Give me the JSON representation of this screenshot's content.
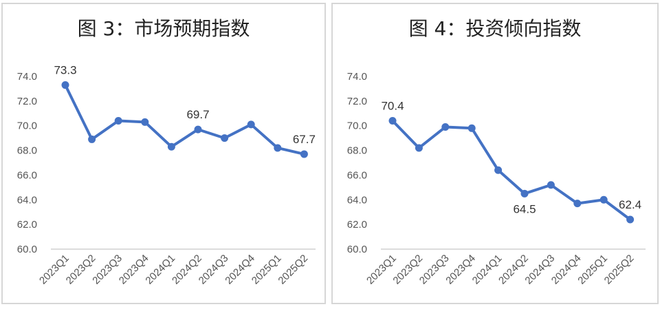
{
  "chart_data": [
    {
      "type": "line",
      "title": "图 3：市场预期指数",
      "categories": [
        "2023Q1",
        "2023Q2",
        "2023Q3",
        "2023Q4",
        "2024Q1",
        "2024Q2",
        "2024Q3",
        "2024Q4",
        "2025Q1",
        "2025Q2"
      ],
      "series": [
        {
          "values": [
            73.3,
            68.9,
            70.4,
            70.3,
            68.3,
            69.7,
            69.0,
            70.1,
            68.2,
            67.7
          ]
        }
      ],
      "data_labels": [
        {
          "index": 0,
          "text": "73.3"
        },
        {
          "index": 5,
          "text": "69.7"
        },
        {
          "index": 9,
          "text": "67.7"
        }
      ],
      "yticks": [
        "60.0",
        "62.0",
        "64.0",
        "66.0",
        "68.0",
        "70.0",
        "72.0",
        "74.0"
      ],
      "ylim": [
        60,
        74
      ],
      "grid": false,
      "line_color": "#4472C4"
    },
    {
      "type": "line",
      "title": "图 4：投资倾向指数",
      "categories": [
        "2023Q1",
        "2023Q2",
        "2023Q3",
        "2023Q4",
        "2024Q1",
        "2024Q2",
        "2024Q3",
        "2024Q4",
        "2025Q1",
        "2025Q2"
      ],
      "series": [
        {
          "values": [
            70.4,
            68.2,
            69.9,
            69.8,
            66.4,
            64.5,
            65.2,
            63.7,
            64.0,
            62.4
          ]
        }
      ],
      "data_labels": [
        {
          "index": 0,
          "text": "70.4"
        },
        {
          "index": 5,
          "text": "64.5"
        },
        {
          "index": 9,
          "text": "62.4"
        }
      ],
      "yticks": [
        "60.0",
        "62.0",
        "64.0",
        "66.0",
        "68.0",
        "70.0",
        "72.0",
        "74.0"
      ],
      "ylim": [
        60,
        74
      ],
      "grid": false,
      "line_color": "#4472C4"
    }
  ]
}
